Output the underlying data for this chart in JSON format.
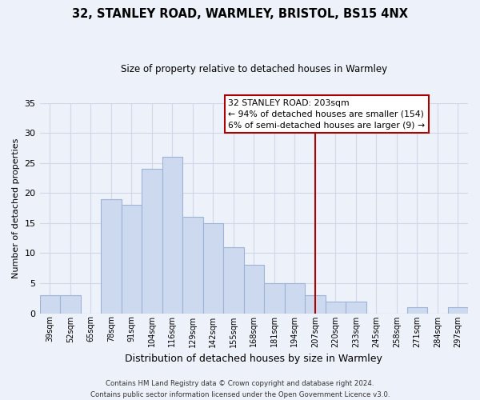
{
  "title": "32, STANLEY ROAD, WARMLEY, BRISTOL, BS15 4NX",
  "subtitle": "Size of property relative to detached houses in Warmley",
  "xlabel": "Distribution of detached houses by size in Warmley",
  "ylabel": "Number of detached properties",
  "bin_labels": [
    "39sqm",
    "52sqm",
    "65sqm",
    "78sqm",
    "91sqm",
    "104sqm",
    "116sqm",
    "129sqm",
    "142sqm",
    "155sqm",
    "168sqm",
    "181sqm",
    "194sqm",
    "207sqm",
    "220sqm",
    "233sqm",
    "245sqm",
    "258sqm",
    "271sqm",
    "284sqm",
    "297sqm"
  ],
  "bar_heights": [
    3,
    3,
    0,
    19,
    18,
    24,
    26,
    16,
    15,
    11,
    8,
    5,
    5,
    3,
    2,
    2,
    0,
    0,
    1,
    0,
    1
  ],
  "bar_color": "#cdd9ee",
  "bar_edge_color": "#9db4d8",
  "ylim": [
    0,
    35
  ],
  "yticks": [
    0,
    5,
    10,
    15,
    20,
    25,
    30,
    35
  ],
  "vline_x": 13,
  "vline_color": "#aa0000",
  "annotation_title": "32 STANLEY ROAD: 203sqm",
  "annotation_line1": "← 94% of detached houses are smaller (154)",
  "annotation_line2": "6% of semi-detached houses are larger (9) →",
  "annotation_box_color": "#ffffff",
  "annotation_border_color": "#aa0000",
  "footer1": "Contains HM Land Registry data © Crown copyright and database right 2024.",
  "footer2": "Contains public sector information licensed under the Open Government Licence v3.0.",
  "background_color": "#edf1f9",
  "grid_color": "#d0d8e8"
}
